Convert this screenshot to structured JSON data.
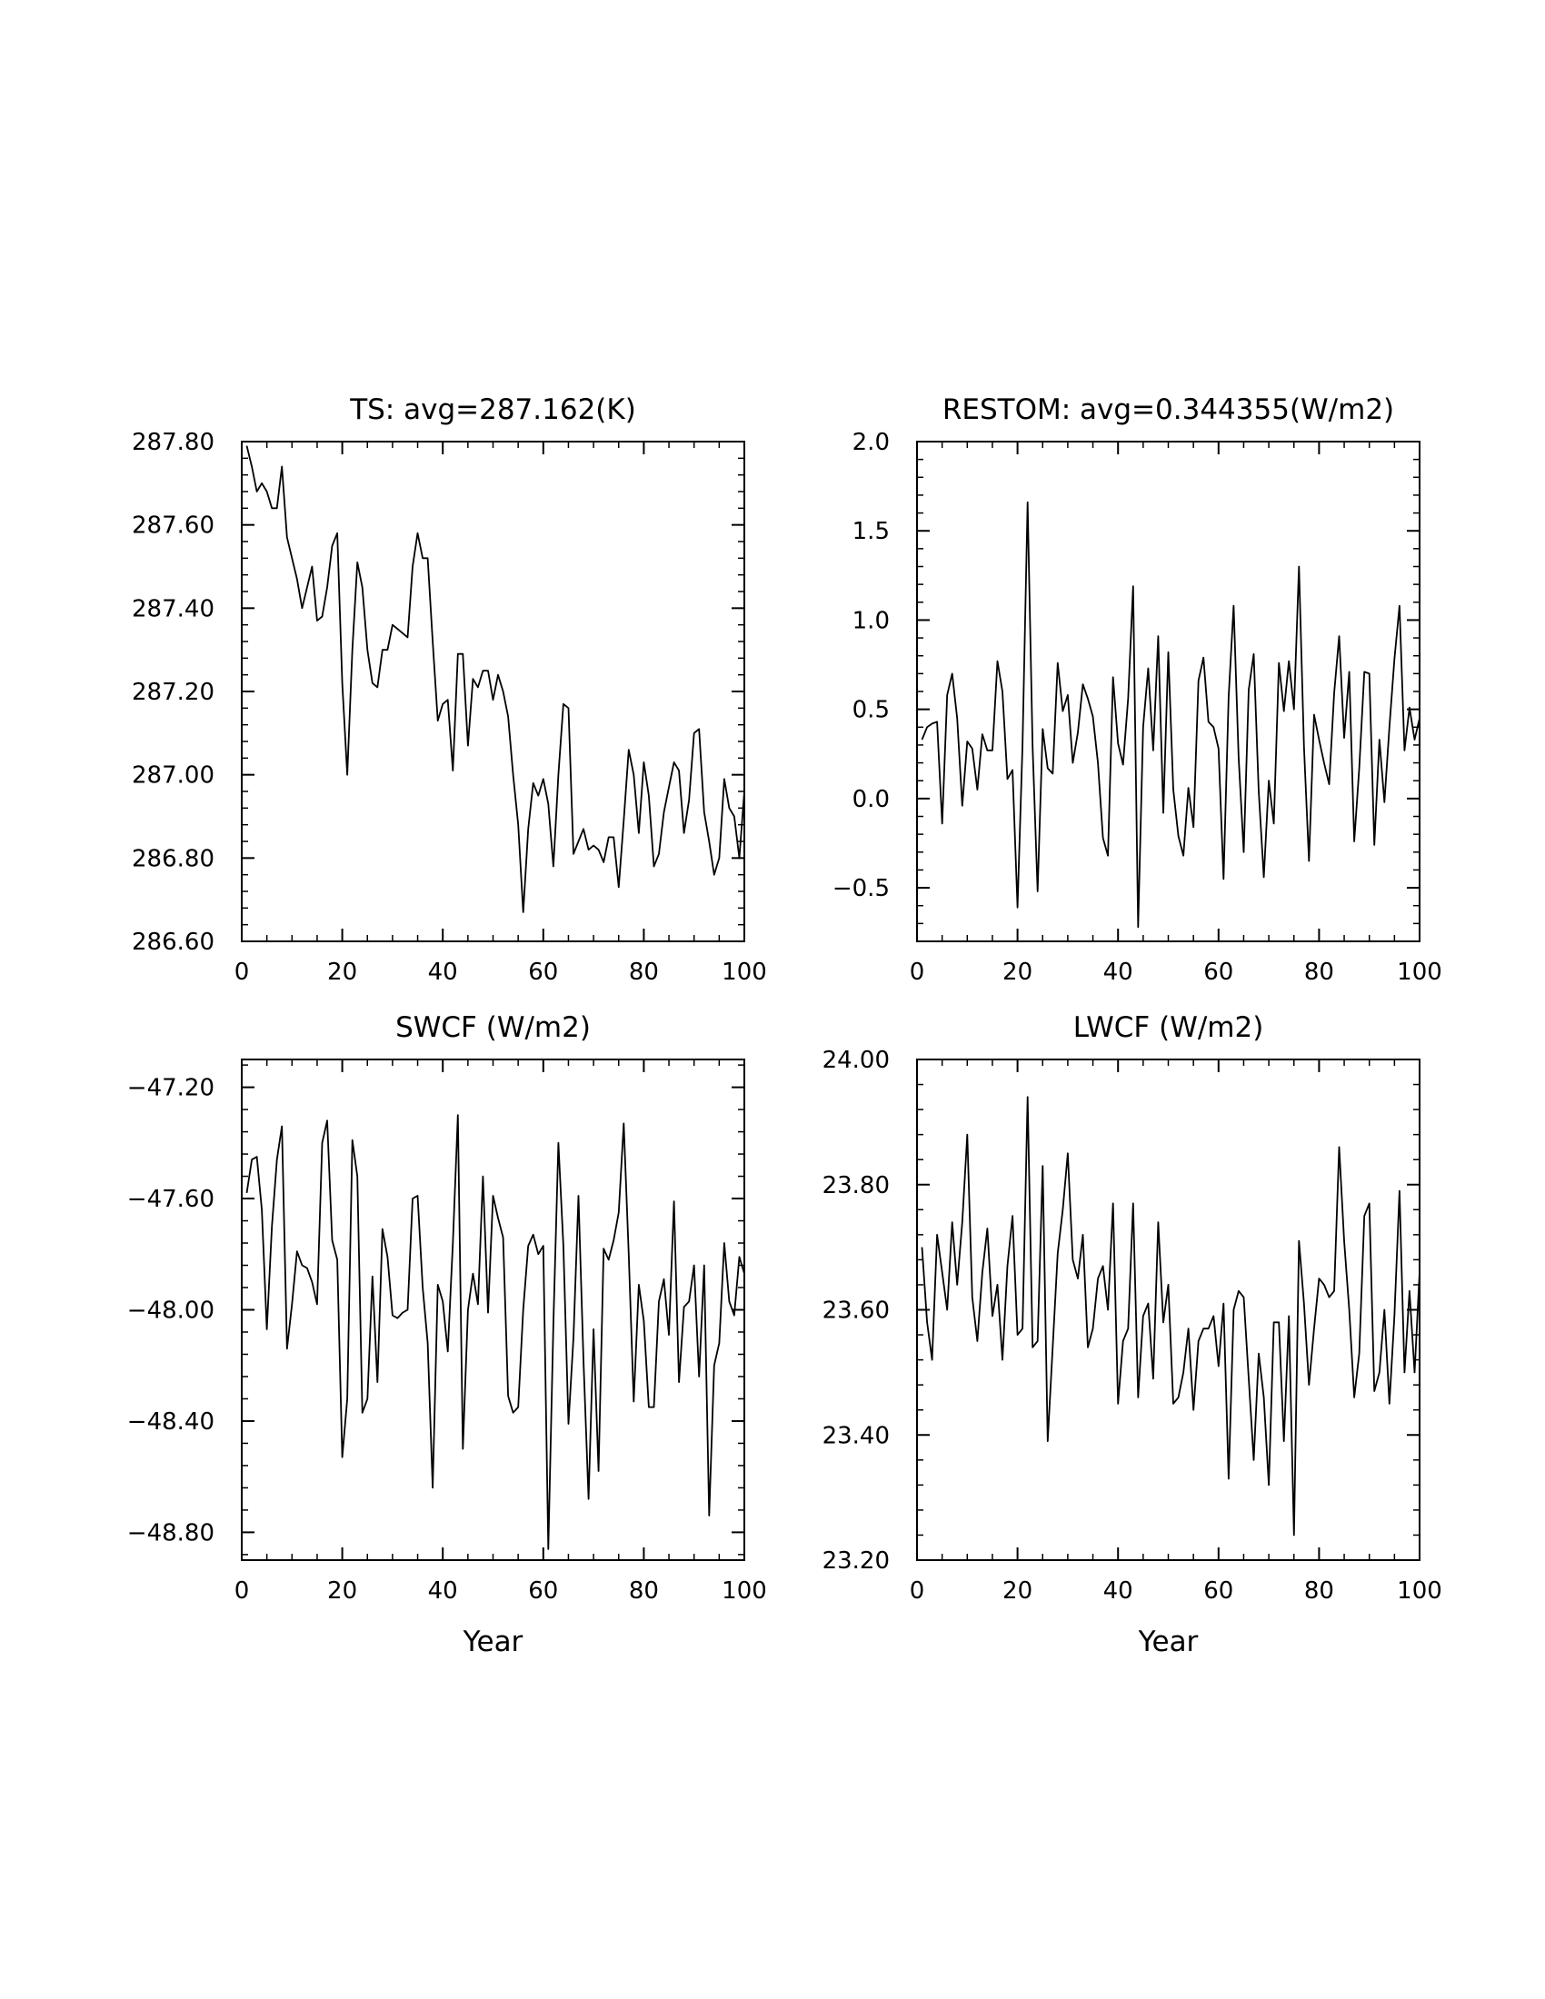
{
  "chart_data": [
    {
      "type": "line",
      "title": "TS: avg=287.162(K)",
      "xlabel": "",
      "ylabel": "",
      "xlim": [
        0,
        100
      ],
      "ylim": [
        286.6,
        287.8
      ],
      "xticks": [
        0,
        20,
        40,
        60,
        80,
        100
      ],
      "xtick_labels": [
        "0",
        "20",
        "40",
        "60",
        "80",
        "100"
      ],
      "yticks": [
        286.6,
        286.8,
        287.0,
        287.2,
        287.4,
        287.6,
        287.8
      ],
      "ytick_labels": [
        "286.60",
        "286.80",
        "287.00",
        "287.20",
        "287.40",
        "287.60",
        "287.80"
      ],
      "x_start": 1,
      "values": [
        287.79,
        287.74,
        287.68,
        287.7,
        287.68,
        287.64,
        287.64,
        287.74,
        287.57,
        287.52,
        287.47,
        287.4,
        287.45,
        287.5,
        287.37,
        287.38,
        287.45,
        287.55,
        287.58,
        287.22,
        287.0,
        287.3,
        287.51,
        287.45,
        287.3,
        287.22,
        287.21,
        287.3,
        287.3,
        287.36,
        287.35,
        287.34,
        287.33,
        287.5,
        287.58,
        287.52,
        287.52,
        287.32,
        287.13,
        287.17,
        287.18,
        287.01,
        287.29,
        287.29,
        287.07,
        287.23,
        287.21,
        287.25,
        287.25,
        287.18,
        287.24,
        287.2,
        287.14,
        287.0,
        286.88,
        286.67,
        286.87,
        286.98,
        286.95,
        286.99,
        286.93,
        286.78,
        287.0,
        287.17,
        287.16,
        286.81,
        286.84,
        286.87,
        286.82,
        286.83,
        286.82,
        286.79,
        286.85,
        286.85,
        286.73,
        286.89,
        287.06,
        287.0,
        286.86,
        287.03,
        286.95,
        286.78,
        286.81,
        286.91,
        286.97,
        287.03,
        287.01,
        286.86,
        286.94,
        287.1,
        287.11,
        286.91,
        286.84,
        286.76,
        286.8,
        286.99,
        286.92,
        286.9,
        286.8,
        286.96
      ]
    },
    {
      "type": "line",
      "title": "RESTOM: avg=0.344355(W/m2)",
      "xlabel": "",
      "ylabel": "",
      "xlim": [
        0,
        100
      ],
      "ylim": [
        -0.8,
        2.0
      ],
      "xticks": [
        0,
        20,
        40,
        60,
        80,
        100
      ],
      "xtick_labels": [
        "0",
        "20",
        "40",
        "60",
        "80",
        "100"
      ],
      "yticks": [
        -0.5,
        0.0,
        0.5,
        1.0,
        1.5,
        2.0
      ],
      "ytick_labels": [
        "−0.5",
        "0.0",
        "0.5",
        "1.0",
        "1.5",
        "2.0"
      ],
      "x_start": 1,
      "values": [
        0.33,
        0.4,
        0.42,
        0.43,
        -0.14,
        0.58,
        0.7,
        0.45,
        -0.04,
        0.32,
        0.28,
        0.05,
        0.36,
        0.27,
        0.27,
        0.77,
        0.6,
        0.11,
        0.16,
        -0.61,
        0.3,
        1.66,
        0.29,
        -0.52,
        0.39,
        0.17,
        0.14,
        0.76,
        0.49,
        0.58,
        0.2,
        0.37,
        0.64,
        0.56,
        0.46,
        0.2,
        -0.22,
        -0.32,
        0.68,
        0.31,
        0.19,
        0.56,
        1.19,
        -0.72,
        0.4,
        0.73,
        0.27,
        0.91,
        -0.08,
        0.82,
        0.05,
        -0.21,
        -0.32,
        0.06,
        -0.16,
        0.66,
        0.79,
        0.43,
        0.4,
        0.28,
        -0.45,
        0.57,
        1.08,
        0.23,
        -0.3,
        0.61,
        0.81,
        0.04,
        -0.44,
        0.1,
        -0.14,
        0.76,
        0.49,
        0.77,
        0.5,
        1.3,
        0.29,
        -0.35,
        0.47,
        0.33,
        0.2,
        0.08,
        0.59,
        0.91,
        0.34,
        0.71,
        -0.24,
        0.17,
        0.71,
        0.7,
        -0.26,
        0.33,
        -0.02,
        0.4,
        0.78,
        1.08,
        0.27,
        0.51,
        0.33,
        0.45
      ]
    },
    {
      "type": "line",
      "title": "SWCF (W/m2)",
      "xlabel": "Year",
      "ylabel": "",
      "xlim": [
        0,
        100
      ],
      "ylim": [
        -48.9,
        -47.1
      ],
      "xticks": [
        0,
        20,
        40,
        60,
        80,
        100
      ],
      "xtick_labels": [
        "0",
        "20",
        "40",
        "60",
        "80",
        "100"
      ],
      "yticks": [
        -48.8,
        -48.4,
        -48.0,
        -47.6,
        -47.2
      ],
      "ytick_labels": [
        "−48.80",
        "−48.40",
        "−48.00",
        "−47.60",
        "−47.20"
      ],
      "x_start": 1,
      "values": [
        -47.58,
        -47.46,
        -47.45,
        -47.64,
        -48.07,
        -47.7,
        -47.46,
        -47.34,
        -48.14,
        -47.98,
        -47.79,
        -47.84,
        -47.85,
        -47.9,
        -47.98,
        -47.4,
        -47.32,
        -47.75,
        -47.82,
        -48.53,
        -48.32,
        -47.39,
        -47.52,
        -48.37,
        -48.32,
        -47.88,
        -48.26,
        -47.71,
        -47.81,
        -48.02,
        -48.03,
        -48.01,
        -48.0,
        -47.6,
        -47.59,
        -47.92,
        -48.12,
        -48.64,
        -47.91,
        -47.97,
        -48.15,
        -47.76,
        -47.3,
        -48.5,
        -48.0,
        -47.87,
        -47.98,
        -47.52,
        -48.01,
        -47.59,
        -47.67,
        -47.74,
        -48.31,
        -48.37,
        -48.35,
        -48.0,
        -47.77,
        -47.73,
        -47.8,
        -47.77,
        -48.86,
        -48.05,
        -47.4,
        -47.77,
        -48.41,
        -48.1,
        -47.59,
        -48.18,
        -48.68,
        -48.07,
        -48.58,
        -47.78,
        -47.82,
        -47.75,
        -47.65,
        -47.33,
        -47.8,
        -48.33,
        -47.91,
        -48.04,
        -48.35,
        -48.35,
        -47.97,
        -47.89,
        -48.09,
        -47.61,
        -48.26,
        -47.99,
        -47.97,
        -47.84,
        -48.24,
        -47.84,
        -48.74,
        -48.2,
        -48.12,
        -47.76,
        -47.97,
        -48.02,
        -47.81,
        -47.87
      ]
    },
    {
      "type": "line",
      "title": "LWCF (W/m2)",
      "xlabel": "Year",
      "ylabel": "",
      "xlim": [
        0,
        100
      ],
      "ylim": [
        23.2,
        24.0
      ],
      "xticks": [
        0,
        20,
        40,
        60,
        80,
        100
      ],
      "xtick_labels": [
        "0",
        "20",
        "40",
        "60",
        "80",
        "100"
      ],
      "yticks": [
        23.2,
        23.4,
        23.6,
        23.8,
        24.0
      ],
      "ytick_labels": [
        "23.20",
        "23.40",
        "23.60",
        "23.80",
        "24.00"
      ],
      "x_start": 1,
      "values": [
        23.7,
        23.58,
        23.52,
        23.72,
        23.66,
        23.6,
        23.74,
        23.64,
        23.74,
        23.88,
        23.62,
        23.55,
        23.66,
        23.73,
        23.59,
        23.64,
        23.52,
        23.67,
        23.75,
        23.56,
        23.57,
        23.94,
        23.54,
        23.55,
        23.83,
        23.39,
        23.54,
        23.69,
        23.76,
        23.85,
        23.68,
        23.65,
        23.72,
        23.54,
        23.57,
        23.65,
        23.67,
        23.6,
        23.77,
        23.45,
        23.55,
        23.57,
        23.77,
        23.46,
        23.59,
        23.61,
        23.49,
        23.74,
        23.58,
        23.64,
        23.45,
        23.46,
        23.5,
        23.57,
        23.44,
        23.55,
        23.57,
        23.57,
        23.59,
        23.51,
        23.61,
        23.33,
        23.6,
        23.63,
        23.62,
        23.49,
        23.36,
        23.53,
        23.46,
        23.32,
        23.58,
        23.58,
        23.39,
        23.59,
        23.24,
        23.71,
        23.61,
        23.48,
        23.57,
        23.65,
        23.64,
        23.62,
        23.63,
        23.86,
        23.71,
        23.6,
        23.46,
        23.53,
        23.75,
        23.77,
        23.47,
        23.5,
        23.6,
        23.45,
        23.59,
        23.79,
        23.5,
        23.63,
        23.5,
        23.66
      ]
    }
  ]
}
